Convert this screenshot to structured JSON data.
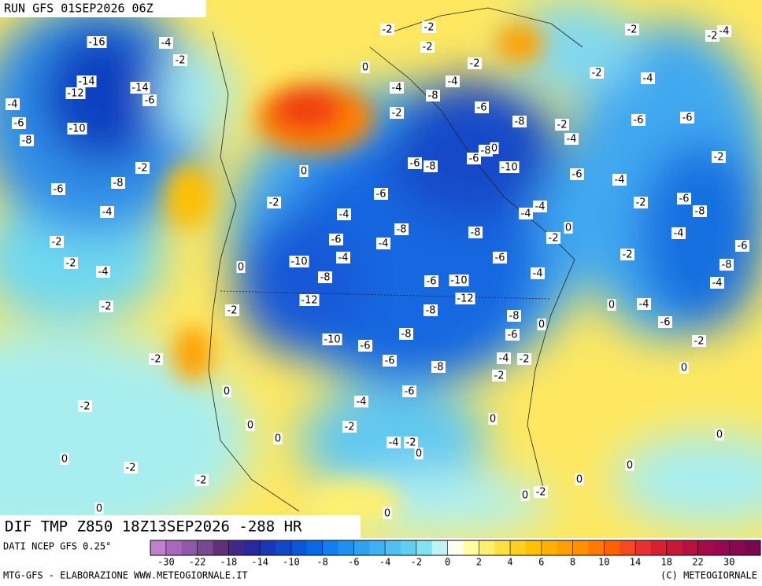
{
  "header": {
    "run": "RUN GFS 01SEP2026 06Z",
    "title": "DIF TMP Z850 18Z13SEP2026 -288 HR"
  },
  "footer": {
    "source": "DATI NCEP GFS 0.25°",
    "credits": "MTG-GFS - ELABORAZIONE WWW.METEOGIORNALE.IT",
    "copyright": "(C) METEOGIORNALE"
  },
  "colorbar": {
    "colors": [
      "#c080d0",
      "#a868c0",
      "#9058a8",
      "#784890",
      "#603078",
      "#402888",
      "#2828a0",
      "#1838b8",
      "#1048c8",
      "#0858d8",
      "#0868e8",
      "#1080f0",
      "#2090f0",
      "#30a0f0",
      "#40b0f0",
      "#50c0f0",
      "#60d0f0",
      "#80e4f0",
      "#c0f4f0",
      "#fffff0",
      "#ffffa0",
      "#fff070",
      "#ffe040",
      "#ffd020",
      "#ffc000",
      "#ffb000",
      "#ffa000",
      "#ff9000",
      "#ff7800",
      "#ff6000",
      "#f84820",
      "#e83030",
      "#d82030",
      "#c81838",
      "#b81040",
      "#a80848",
      "#980850",
      "#880850",
      "#780850"
    ],
    "ticks": [
      -30,
      -22,
      -18,
      -14,
      -10,
      -8,
      -6,
      -4,
      -2,
      0,
      2,
      4,
      6,
      8,
      10,
      14,
      18,
      22,
      30
    ]
  },
  "map": {
    "labels": [
      "-16",
      "-4",
      "-2",
      "-14",
      "-12",
      "-14",
      "-6",
      "-4",
      "-6",
      "-10",
      "-8",
      "-2",
      "-8",
      "-6",
      "-4",
      "-2",
      "-2",
      "-4",
      "-2",
      "-2",
      "0",
      "-2",
      "0",
      "0",
      "-2",
      "-4",
      "-6",
      "-8",
      "-6",
      "-6",
      "-8",
      "-8",
      "-12",
      "-10",
      "-6",
      "-6",
      "-8",
      "-8",
      "-4",
      "-4",
      "-6",
      "-2",
      "0",
      "-6",
      "-4",
      "-10",
      "-8",
      "-12",
      "-10",
      "-2",
      "0",
      "-4",
      "-2",
      "-2",
      "0",
      "-6",
      "-8",
      "-4",
      "-2",
      "0",
      "-4",
      "-4",
      "-6",
      "-4",
      "-2",
      "-6",
      "-8",
      "-4",
      "-2",
      "-8",
      "-6",
      "-4",
      "-4",
      "0",
      "-6",
      "-2",
      "0",
      "0",
      "0",
      "0",
      "-2",
      "0",
      "0",
      "0",
      "-4",
      "-2",
      "-2",
      "-2",
      "0",
      "0",
      "0",
      "-10",
      "-6",
      "-8",
      "-6",
      "-8",
      "-6",
      "-8",
      "0",
      "-2",
      "-4",
      "-6",
      "-6",
      "-4",
      "-2",
      "-4",
      "-8",
      "-4",
      "-2",
      "-2",
      "0",
      "-2",
      "-2",
      "-2",
      "-2",
      "-2",
      "-4",
      "-2"
    ]
  }
}
